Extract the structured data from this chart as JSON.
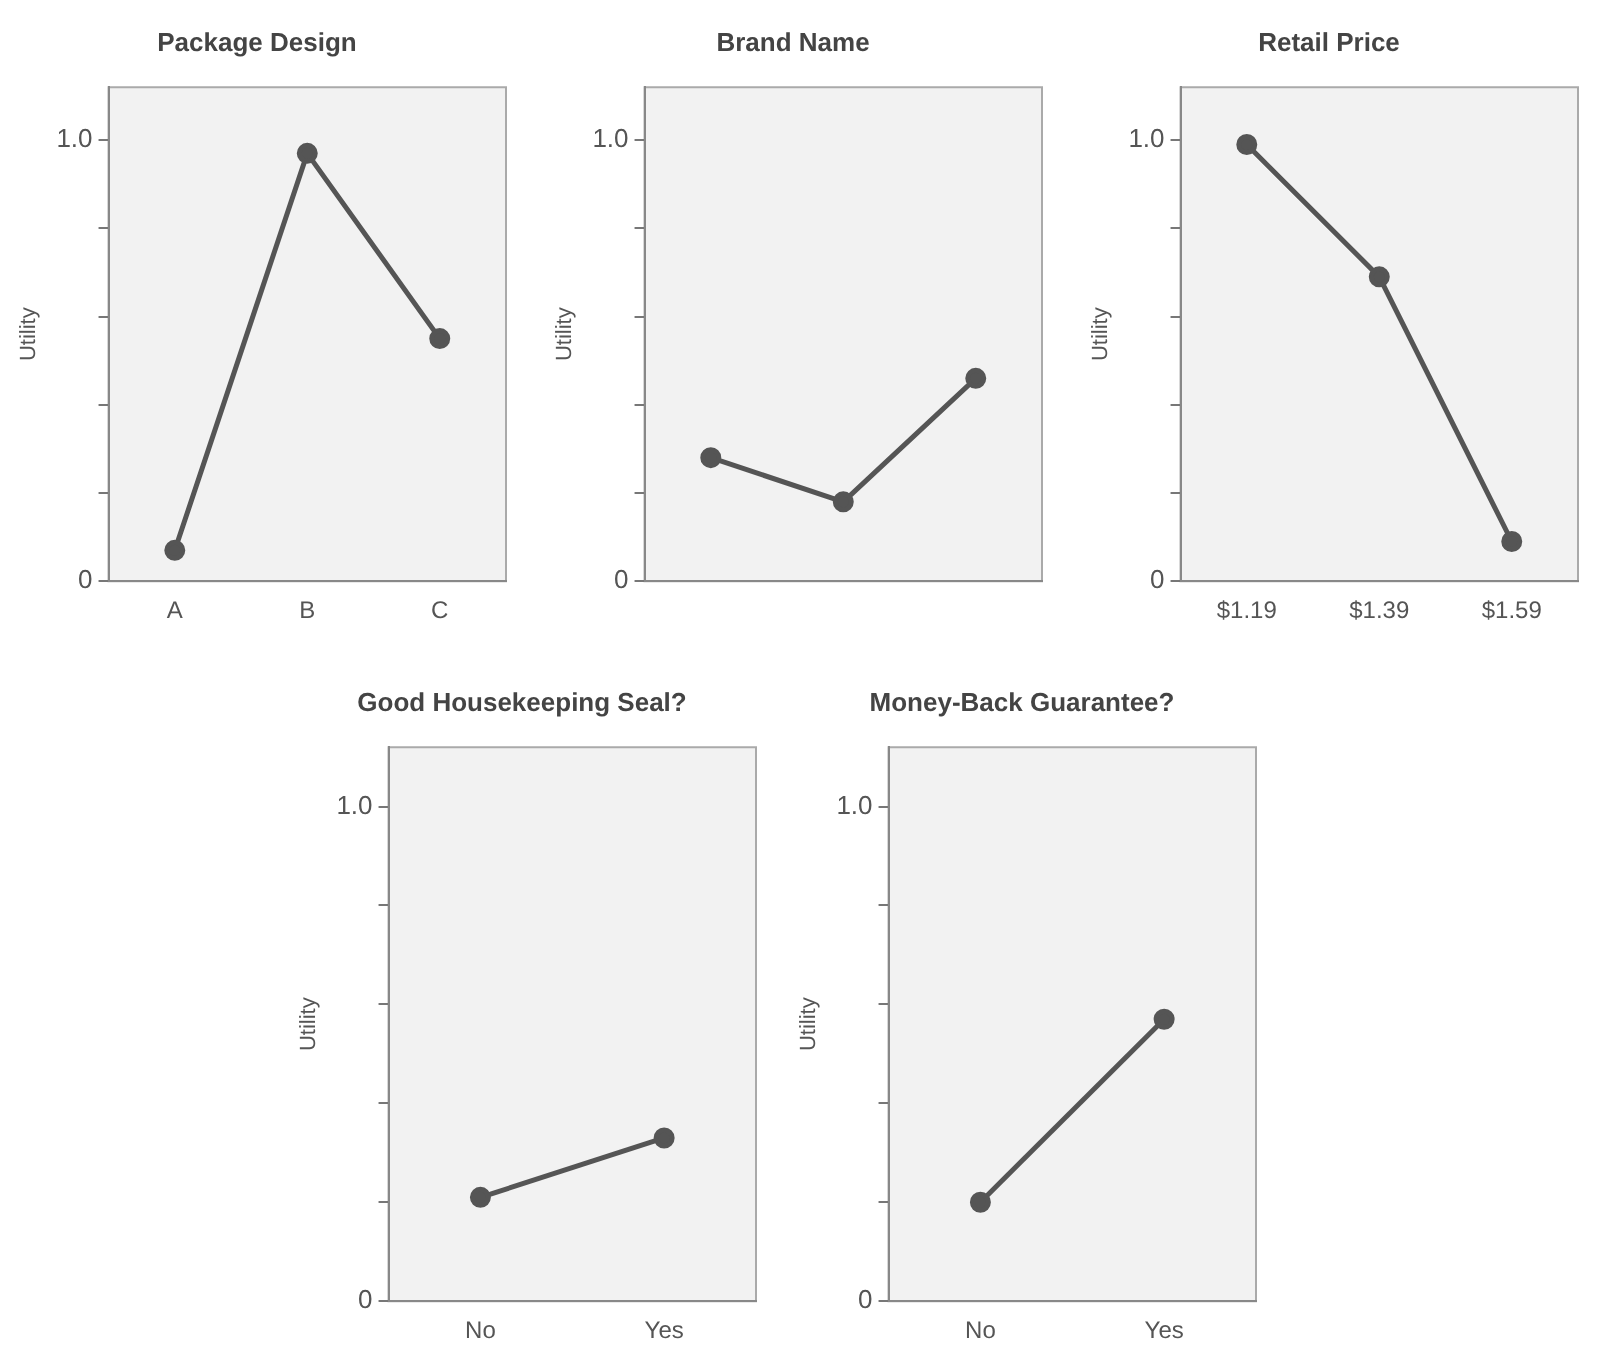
{
  "chart_data": [
    {
      "type": "line",
      "title": "Package Design",
      "ylabel": "Utility",
      "categories": [
        "A",
        "B",
        "C"
      ],
      "series": [
        {
          "color": "#555555",
          "values": [
            0.07,
            0.97,
            0.55
          ]
        }
      ],
      "ylim": [
        0,
        1.12
      ],
      "yticks": [
        {
          "value": 0,
          "label": "0"
        },
        {
          "value": 0.2,
          "label": null
        },
        {
          "value": 0.4,
          "label": null
        },
        {
          "value": 0.6,
          "label": null
        },
        {
          "value": 0.8,
          "label": null
        },
        {
          "value": 1,
          "label": "1.0"
        }
      ],
      "grid": false,
      "legend": false,
      "marker": "circle",
      "line_style": "solid"
    },
    {
      "type": "line",
      "title": "Brand Name",
      "ylabel": "Utility",
      "categories": [
        null,
        null,
        null
      ],
      "series": [
        {
          "color": "#555555",
          "values": [
            0.28,
            0.18,
            0.46
          ]
        }
      ],
      "ylim": [
        0,
        1.12
      ],
      "yticks": [
        {
          "value": 0,
          "label": "0"
        },
        {
          "value": 0.2,
          "label": null
        },
        {
          "value": 0.4,
          "label": null
        },
        {
          "value": 0.6,
          "label": null
        },
        {
          "value": 0.8,
          "label": null
        },
        {
          "value": 1,
          "label": "1.0"
        }
      ],
      "grid": false,
      "legend": false,
      "marker": "circle",
      "line_style": "solid"
    },
    {
      "type": "line",
      "title": "Retail Price",
      "ylabel": "Utility",
      "categories": [
        "$1.19",
        "$1.39",
        "$1.59"
      ],
      "series": [
        {
          "color": "#555555",
          "values": [
            0.99,
            0.69,
            0.09
          ]
        }
      ],
      "ylim": [
        0,
        1.12
      ],
      "yticks": [
        {
          "value": 0,
          "label": "0"
        },
        {
          "value": 0.2,
          "label": null
        },
        {
          "value": 0.4,
          "label": null
        },
        {
          "value": 0.6,
          "label": null
        },
        {
          "value": 0.8,
          "label": null
        },
        {
          "value": 1,
          "label": "1.0"
        }
      ],
      "grid": false,
      "legend": false,
      "marker": "circle",
      "line_style": "solid"
    },
    {
      "type": "line",
      "title": "Good Housekeeping Seal?",
      "ylabel": "Utility",
      "categories": [
        "No",
        "Yes"
      ],
      "series": [
        {
          "color": "#555555",
          "values": [
            0.21,
            0.33
          ]
        }
      ],
      "ylim": [
        0,
        1.12
      ],
      "yticks": [
        {
          "value": 0,
          "label": "0"
        },
        {
          "value": 0.2,
          "label": null
        },
        {
          "value": 0.4,
          "label": null
        },
        {
          "value": 0.6,
          "label": null
        },
        {
          "value": 0.8,
          "label": null
        },
        {
          "value": 1,
          "label": "1.0"
        }
      ],
      "grid": false,
      "legend": false,
      "marker": "circle",
      "line_style": "solid"
    },
    {
      "type": "line",
      "title": "Money-Back Guarantee?",
      "ylabel": "Utility",
      "categories": [
        "No",
        "Yes"
      ],
      "series": [
        {
          "color": "#555555",
          "values": [
            0.2,
            0.57
          ]
        }
      ],
      "ylim": [
        0,
        1.12
      ],
      "yticks": [
        {
          "value": 0,
          "label": "0"
        },
        {
          "value": 0.2,
          "label": null
        },
        {
          "value": 0.4,
          "label": null
        },
        {
          "value": 0.6,
          "label": null
        },
        {
          "value": 0.8,
          "label": null
        },
        {
          "value": 1,
          "label": "1.0"
        }
      ],
      "grid": false,
      "legend": false,
      "marker": "circle",
      "line_style": "solid"
    }
  ]
}
